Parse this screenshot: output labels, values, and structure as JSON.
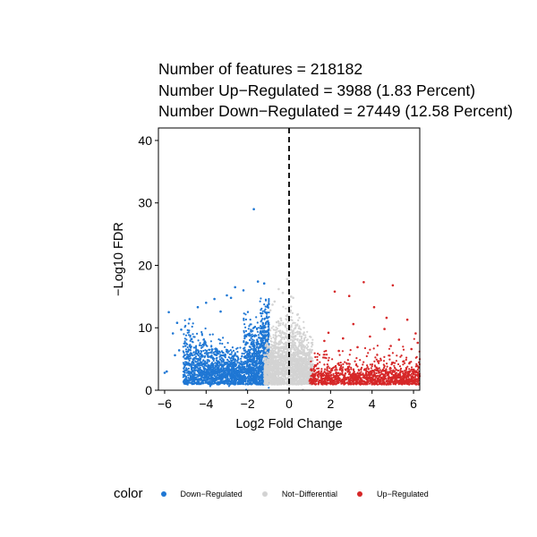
{
  "chart_data": {
    "type": "scatter",
    "title_lines": [
      "Number of features = 218182",
      "Number Up−Regulated = 3988 (1.83 Percent)",
      "Number Down−Regulated = 27449 (12.58 Percent)"
    ],
    "xlabel": "Log2 Fold Change",
    "ylabel": "−Log10 FDR",
    "xlim": [
      -6.3,
      6.3
    ],
    "ylim": [
      0,
      42
    ],
    "xticks": [
      -6,
      -4,
      -2,
      0,
      2,
      4,
      6
    ],
    "xtick_labels": [
      "−6",
      "−4",
      "−2",
      "0",
      "2",
      "4",
      "6"
    ],
    "yticks": [
      0,
      10,
      20,
      30,
      40
    ],
    "ytick_labels": [
      "0",
      "10",
      "20",
      "30",
      "40"
    ],
    "vline_x": 0,
    "grid": false,
    "legend_position": "bottom",
    "legend_title": "color",
    "series": [
      {
        "name": "Down−Regulated",
        "color": "#1f77d4",
        "points": [
          [
            -1.7,
            29.0
          ],
          [
            -5.8,
            12.5
          ],
          [
            -4.0,
            14.0
          ],
          [
            -4.4,
            13.3
          ],
          [
            -3.6,
            14.6
          ],
          [
            -5.4,
            10.8
          ],
          [
            -5.6,
            9.1
          ],
          [
            -5.2,
            9.7
          ],
          [
            -6.0,
            2.8
          ],
          [
            -5.9,
            3.0
          ],
          [
            -5.5,
            5.6
          ],
          [
            -3.0,
            15.2
          ],
          [
            -2.6,
            16.5
          ],
          [
            -1.5,
            17.4
          ],
          [
            -1.2,
            17.1
          ],
          [
            -2.2,
            16.0
          ],
          [
            -4.8,
            11.4
          ],
          [
            -4.7,
            8.2
          ],
          [
            -3.3,
            12.6
          ],
          [
            -2.8,
            14.8
          ],
          [
            -5.3,
            6.4
          ],
          [
            -5.0,
            7.1
          ]
        ]
      },
      {
        "name": "Not−Differential",
        "color": "#d3d3d3",
        "points": [
          [
            -0.5,
            16.2
          ],
          [
            -0.3,
            15.6
          ],
          [
            0.2,
            14.8
          ],
          [
            -0.8,
            13.7
          ],
          [
            0.4,
            12.1
          ],
          [
            -0.6,
            10.9
          ],
          [
            0.6,
            8.6
          ],
          [
            -0.9,
            12.8
          ],
          [
            0.8,
            5.7
          ],
          [
            -0.1,
            17.8
          ],
          [
            0.1,
            15.0
          ],
          [
            -0.4,
            11.5
          ],
          [
            0.5,
            9.9
          ],
          [
            -0.7,
            14.2
          ]
        ]
      },
      {
        "name": "Up−Regulated",
        "color": "#d62728",
        "points": [
          [
            3.6,
            17.3
          ],
          [
            5.0,
            16.8
          ],
          [
            2.2,
            15.8
          ],
          [
            2.9,
            15.1
          ],
          [
            4.1,
            13.3
          ],
          [
            5.7,
            11.3
          ],
          [
            3.1,
            10.6
          ],
          [
            4.7,
            11.6
          ],
          [
            1.9,
            9.2
          ],
          [
            6.1,
            9.1
          ],
          [
            4.6,
            9.8
          ],
          [
            2.6,
            8.3
          ],
          [
            3.9,
            8.6
          ],
          [
            5.3,
            8.1
          ],
          [
            1.7,
            7.9
          ],
          [
            6.2,
            7.6
          ],
          [
            4.9,
            7.1
          ],
          [
            3.3,
            6.9
          ],
          [
            5.9,
            6.6
          ],
          [
            2.4,
            6.3
          ],
          [
            5.5,
            4.6
          ],
          [
            5.8,
            4.3
          ]
        ]
      }
    ],
    "clusters": [
      {
        "series": 0,
        "count": 2600,
        "xmin": -5.1,
        "xmax": -0.97,
        "ymin": 0.9,
        "sigma": 0.9
      },
      {
        "series": 1,
        "count": 2200,
        "xmin": -1.2,
        "xmax": 1.15,
        "ymin": 0.9,
        "sigma": 0.5
      },
      {
        "series": 2,
        "count": 1300,
        "xmin": 0.97,
        "xmax": 6.3,
        "ymin": 0.9,
        "sigma": 1.3
      }
    ]
  }
}
